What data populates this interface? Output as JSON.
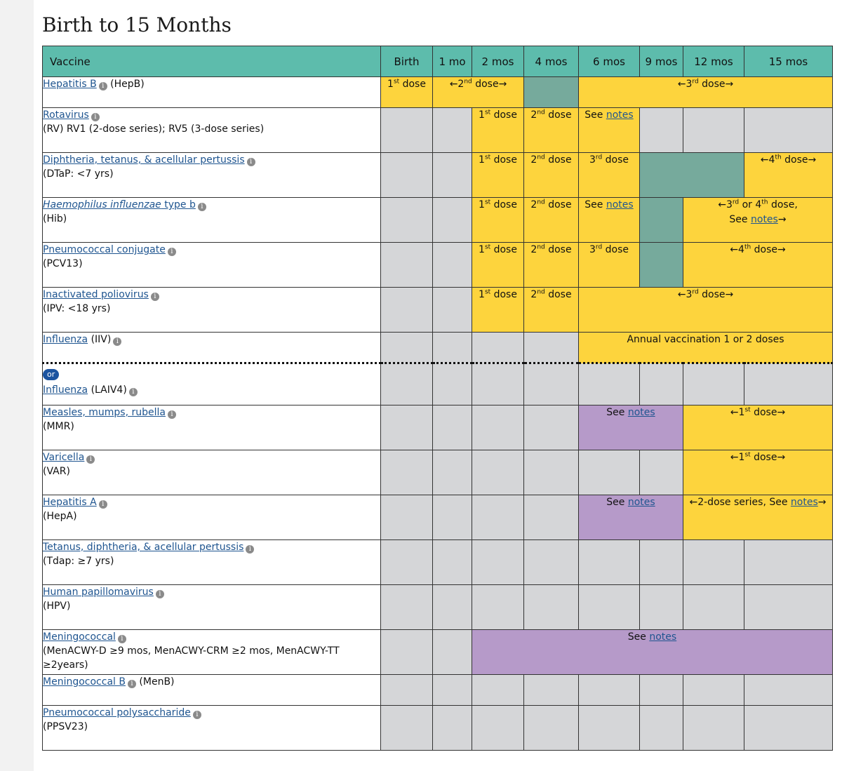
{
  "page_title": "Birth to 15 Months",
  "columns": {
    "vaccine": "Vaccine",
    "ages": [
      "Birth",
      "1 mo",
      "2 mos",
      "4 mos",
      "6 mos",
      "9 mos",
      "12 mos",
      "15 mos"
    ]
  },
  "text": {
    "dose": "dose",
    "see": "See",
    "notes": "notes",
    "st": "st",
    "nd": "nd",
    "rd": "rd",
    "th": "th",
    "n1": "1",
    "n2": "2",
    "n3": "3",
    "n4": "4",
    "left_arrow": "←",
    "right_arrow": "→",
    "or_word": "or",
    "third_or_fourth_prefix": "or",
    "dose_comma": "dose,",
    "two_dose_series": "2-dose series, See",
    "annual": "Annual vaccination 1 or 2 doses",
    "info_glyph": "i"
  },
  "vaccines": {
    "hepb": {
      "name": "Hepatitis B",
      "extra": "(HepB)"
    },
    "rv": {
      "name": "Rotavirus",
      "abbr": "(RV) RV1 (2-dose series); RV5 (3-dose series)"
    },
    "dtap": {
      "name": "Diphtheria, tetanus, & acellular pertussis",
      "abbr": "(DTaP: <7 yrs)"
    },
    "hib": {
      "name_italic": "Haemophilus influenzae",
      "name_rest": " type b",
      "abbr": "(Hib)"
    },
    "pcv": {
      "name": "Pneumococcal conjugate",
      "abbr": "(PCV13)"
    },
    "ipv": {
      "name": "Inactivated poliovirus",
      "abbr": "(IPV: <18 yrs)"
    },
    "iiv": {
      "name": "Influenza",
      "extra": "(IIV)"
    },
    "laiv": {
      "name": "Influenza",
      "extra": "(LAIV4)"
    },
    "mmr": {
      "name": "Measles, mumps, rubella",
      "abbr": "(MMR)"
    },
    "var": {
      "name": "Varicella",
      "abbr": "(VAR)"
    },
    "hepa": {
      "name": "Hepatitis A",
      "abbr": "(HepA)"
    },
    "tdap": {
      "name": "Tetanus, diphtheria, & acellular pertussis",
      "abbr": "(Tdap: ≥7 yrs)"
    },
    "hpv": {
      "name": "Human papillomavirus",
      "abbr": "(HPV)"
    },
    "menacwy": {
      "name": "Meningococcal",
      "abbr": "(MenACWY-D ≥9 mos, MenACWY-CRM ≥2 mos, MenACWY-TT ≥2years)"
    },
    "menb": {
      "name": "Meningococcal B",
      "extra": "(MenB)"
    },
    "ppsv": {
      "name": "Pneumococcal polysaccharide",
      "abbr": "(PPSV23)"
    }
  },
  "colors": {
    "header_teal": "#5dbcac",
    "recommended_yellow": "#fdd43d",
    "catchup_teal": "#76aa9c",
    "notes_purple": "#b69ac9",
    "not_recommended_gray": "#d5d6d8",
    "link_blue": "#1f5590"
  }
}
